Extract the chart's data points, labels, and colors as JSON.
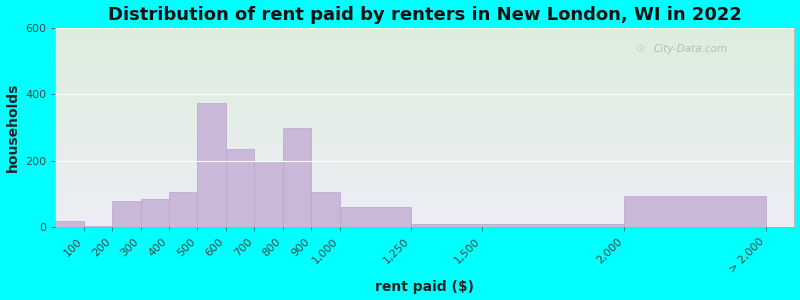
{
  "title": "Distribution of rent paid by renters in New London, WI in 2022",
  "xlabel": "rent paid ($)",
  "ylabel": "households",
  "bin_edges": [
    0,
    100,
    200,
    300,
    400,
    500,
    600,
    700,
    800,
    900,
    1000,
    1250,
    1500,
    2000,
    2500
  ],
  "bar_values": [
    20,
    5,
    80,
    85,
    105,
    375,
    235,
    200,
    300,
    105,
    60,
    10,
    10,
    95
  ],
  "tick_positions": [
    100,
    200,
    300,
    400,
    500,
    600,
    700,
    800,
    900,
    1000,
    1250,
    1500,
    2000,
    2500
  ],
  "tick_labels": [
    "100",
    "200",
    "300",
    "400",
    "500",
    "600",
    "700",
    "800",
    "900",
    "1,000",
    "1,250",
    "1,500",
    "2,000",
    "> 2,000"
  ],
  "bar_color": "#c9b8d8",
  "bar_edge_color": "#b8a5cc",
  "ylim": [
    0,
    600
  ],
  "yticks": [
    0,
    200,
    400,
    600
  ],
  "xlim": [
    0,
    2600
  ],
  "background_outer": "#00ffff",
  "grad_top": "#ddeedd",
  "grad_bottom": "#ededf5",
  "title_fontsize": 13,
  "axis_label_fontsize": 10,
  "tick_fontsize": 8,
  "watermark_text": "City-Data.com"
}
